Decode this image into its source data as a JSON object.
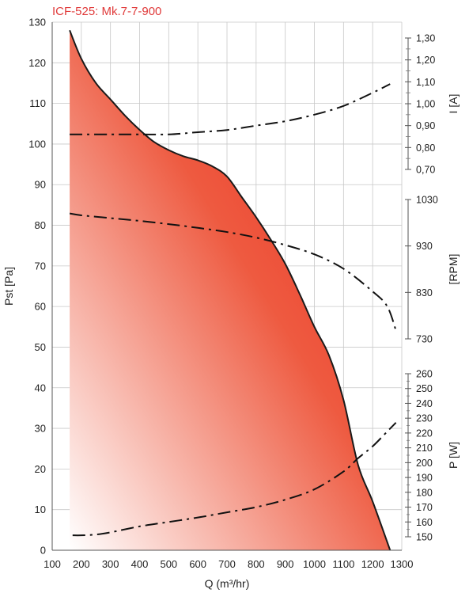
{
  "chart_data": {
    "type": "area",
    "title": "ICF-525: Mk.7-7-900",
    "xlabel": "Q (m³/hr)",
    "xlim": [
      100,
      1300
    ],
    "x_ticks": [
      100,
      200,
      300,
      400,
      500,
      600,
      700,
      800,
      900,
      1000,
      1100,
      1200,
      1300
    ],
    "grid": true,
    "fill_colors": {
      "dark": "#e8231a",
      "light": "#ffffff",
      "line": "#1a1a1a"
    },
    "axes": {
      "pst": {
        "label": "Pst [Pa]",
        "lim": [
          0,
          130
        ],
        "ticks": [
          0,
          10,
          20,
          30,
          40,
          50,
          60,
          70,
          80,
          90,
          100,
          110,
          120,
          130
        ]
      },
      "current": {
        "label": "I [A]",
        "lim": [
          0.7,
          1.3
        ],
        "ticks": [
          "0,70",
          "0,80",
          "0,90",
          "1,00",
          "1,10",
          "1,20",
          "1,30"
        ]
      },
      "rpm": {
        "label": "[RPM]",
        "lim": [
          730,
          1030
        ],
        "ticks": [
          "730",
          "830",
          "930",
          "1030"
        ]
      },
      "power": {
        "label": "P [W]",
        "lim": [
          150,
          260
        ],
        "ticks": [
          "150",
          "160",
          "170",
          "180",
          "190",
          "200",
          "210",
          "220",
          "230",
          "240",
          "250",
          "260"
        ]
      }
    },
    "series": [
      {
        "name": "Pst",
        "axis": "pst",
        "style": "solid",
        "x": [
          160,
          200,
          250,
          300,
          350,
          400,
          450,
          500,
          550,
          600,
          650,
          700,
          750,
          800,
          850,
          900,
          950,
          1000,
          1050,
          1100,
          1150,
          1200,
          1260
        ],
        "y": [
          128,
          121,
          115,
          111,
          107,
          103.5,
          100.5,
          98.5,
          97,
          96,
          94.5,
          92,
          87,
          82,
          76.5,
          70.5,
          63,
          55,
          48,
          37,
          21,
          12,
          0
        ]
      },
      {
        "name": "I",
        "axis": "current",
        "style": "dashdot",
        "x": [
          160,
          200,
          300,
          400,
          500,
          600,
          700,
          800,
          900,
          1000,
          1100,
          1200,
          1260
        ],
        "y": [
          0.86,
          0.86,
          0.86,
          0.86,
          0.86,
          0.87,
          0.88,
          0.9,
          0.92,
          0.95,
          0.99,
          1.05,
          1.09
        ]
      },
      {
        "name": "RPM",
        "axis": "rpm",
        "style": "dashdot",
        "x": [
          160,
          200,
          300,
          400,
          500,
          600,
          700,
          800,
          900,
          1000,
          1100,
          1200,
          1250,
          1280
        ],
        "y": [
          1000,
          996,
          990,
          984,
          977,
          969,
          960,
          948,
          932,
          912,
          881,
          832,
          800,
          748
        ]
      },
      {
        "name": "P",
        "axis": "power",
        "style": "dashdot",
        "x": [
          170,
          200,
          250,
          300,
          400,
          500,
          600,
          700,
          800,
          900,
          1000,
          1100,
          1150,
          1200,
          1250,
          1280
        ],
        "y": [
          151,
          151,
          151.5,
          153,
          157,
          160,
          163,
          166.5,
          170,
          175,
          182,
          194,
          203,
          211,
          221,
          227
        ]
      }
    ]
  }
}
